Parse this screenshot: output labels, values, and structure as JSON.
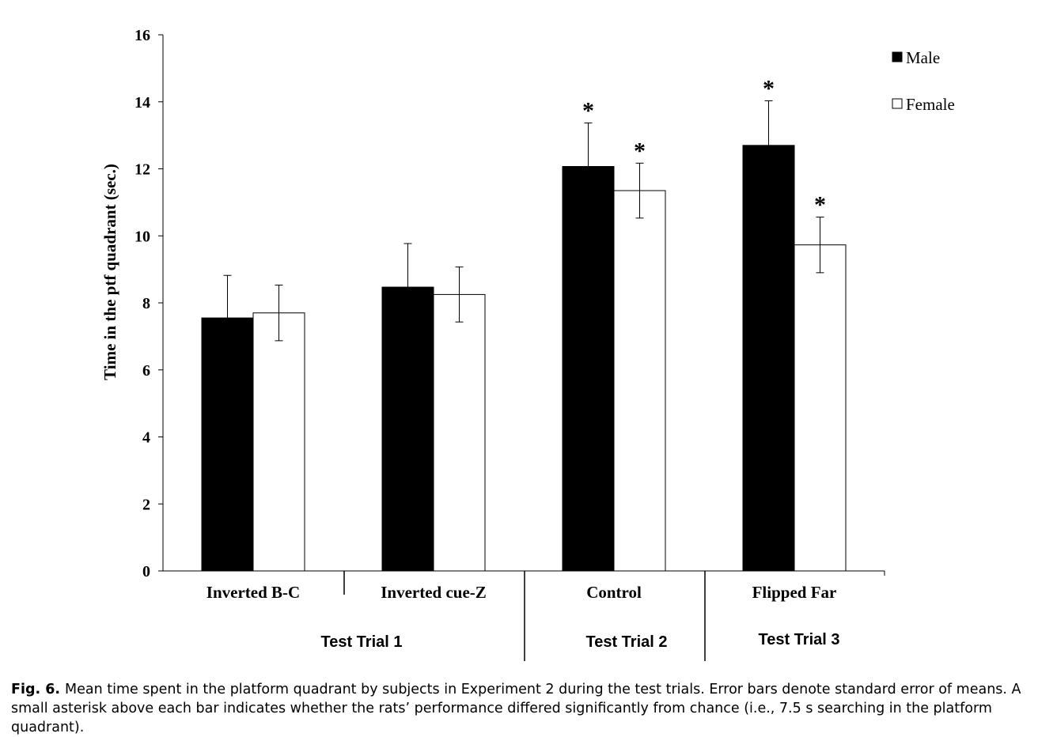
{
  "chart_data": {
    "type": "bar",
    "ylabel": "Time in the ptf quadrant (sec.)",
    "xlabel": "",
    "ylim": [
      0,
      16
    ],
    "yticks": [
      0,
      2,
      4,
      6,
      8,
      10,
      12,
      14,
      16
    ],
    "categories": [
      "Inverted B-C",
      "Inverted cue-Z",
      "Control",
      "Flipped Far"
    ],
    "groups": [
      {
        "label": "Test Trial 1",
        "categories": [
          "Inverted B-C",
          "Inverted cue-Z"
        ]
      },
      {
        "label": "Test Trial 2",
        "categories": [
          "Control"
        ]
      },
      {
        "label": "Test Trial 3",
        "categories": [
          "Flipped Far"
        ]
      }
    ],
    "series": [
      {
        "name": "Male",
        "color": "#000000",
        "values": [
          7.55,
          8.47,
          12.07,
          12.7
        ],
        "errors": [
          1.27,
          1.3,
          1.3,
          1.33
        ]
      },
      {
        "name": "Female",
        "color": "#ffffff",
        "values": [
          7.7,
          8.25,
          11.35,
          9.73
        ],
        "errors": [
          0.83,
          0.82,
          0.82,
          0.83
        ]
      }
    ],
    "significance_marker": "*",
    "significant": {
      "Male": [
        false,
        false,
        true,
        true
      ],
      "Female": [
        false,
        false,
        true,
        true
      ]
    },
    "legend_position": "top-right",
    "grid": false
  },
  "caption": {
    "label": "Fig. 6.",
    "text": "Mean time spent in the platform quadrant by subjects in Experiment 2 during the test trials. Error bars denote standard error of means. A small asterisk above each bar indicates whether the rats’ performance differed significantly from chance (i.e., 7.5 s searching in the platform quadrant)."
  }
}
